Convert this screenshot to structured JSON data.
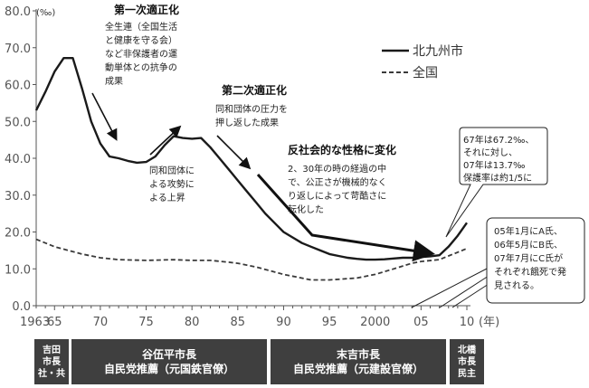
{
  "chart_data": {
    "type": "line",
    "unit_label": "(‰)",
    "x_unit_label": "(年)",
    "xlim": [
      1963,
      2010
    ],
    "ylim": [
      0,
      80
    ],
    "y_ticks": [
      "0.0",
      "10.0",
      "20.0",
      "30.0",
      "40.0",
      "50.0",
      "60.0",
      "70.0",
      "80.0"
    ],
    "x_ticks": [
      {
        "value": 1963,
        "label": "1963"
      },
      {
        "value": 1965,
        "label": "65"
      },
      {
        "value": 1970,
        "label": "70"
      },
      {
        "value": 1975,
        "label": "75"
      },
      {
        "value": 1980,
        "label": "80"
      },
      {
        "value": 1985,
        "label": "85"
      },
      {
        "value": 1990,
        "label": "90"
      },
      {
        "value": 1995,
        "label": "95"
      },
      {
        "value": 2000,
        "label": "2000"
      },
      {
        "value": 2005,
        "label": "05"
      },
      {
        "value": 2010,
        "label": "10"
      }
    ],
    "series": [
      {
        "name": "北九州市",
        "style": "solid",
        "color": "#1a1a1a",
        "points": [
          [
            1963,
            53.0
          ],
          [
            1964,
            58.0
          ],
          [
            1965,
            63.5
          ],
          [
            1966,
            67.2
          ],
          [
            1967,
            67.2
          ],
          [
            1968,
            59.0
          ],
          [
            1969,
            50.0
          ],
          [
            1970,
            44.0
          ],
          [
            1971,
            40.5
          ],
          [
            1972,
            40.0
          ],
          [
            1973,
            39.3
          ],
          [
            1974,
            38.8
          ],
          [
            1975,
            39.0
          ],
          [
            1976,
            40.5
          ],
          [
            1977,
            43.5
          ],
          [
            1978,
            46.0
          ],
          [
            1979,
            45.5
          ],
          [
            1980,
            45.3
          ],
          [
            1981,
            45.5
          ],
          [
            1982,
            43.0
          ],
          [
            1983,
            40.0
          ],
          [
            1984,
            37.0
          ],
          [
            1985,
            34.0
          ],
          [
            1986,
            31.0
          ],
          [
            1987,
            28.0
          ],
          [
            1988,
            25.0
          ],
          [
            1989,
            22.5
          ],
          [
            1990,
            20.0
          ],
          [
            1991,
            18.5
          ],
          [
            1992,
            17.0
          ],
          [
            1993,
            16.0
          ],
          [
            1994,
            15.0
          ],
          [
            1995,
            14.0
          ],
          [
            1996,
            13.5
          ],
          [
            1997,
            13.0
          ],
          [
            1998,
            12.7
          ],
          [
            1999,
            12.5
          ],
          [
            2000,
            12.5
          ],
          [
            2001,
            12.6
          ],
          [
            2002,
            12.8
          ],
          [
            2003,
            13.0
          ],
          [
            2004,
            13.0
          ],
          [
            2005,
            13.2
          ],
          [
            2006,
            13.4
          ],
          [
            2007,
            13.7
          ],
          [
            2008,
            16.0
          ],
          [
            2009,
            19.0
          ],
          [
            2010,
            22.5
          ]
        ]
      },
      {
        "name": "全国",
        "style": "dashed",
        "color": "#3a3a3a",
        "points": [
          [
            1963,
            18.0
          ],
          [
            1965,
            16.0
          ],
          [
            1968,
            14.0
          ],
          [
            1970,
            13.0
          ],
          [
            1972,
            12.5
          ],
          [
            1975,
            12.3
          ],
          [
            1978,
            12.5
          ],
          [
            1980,
            12.3
          ],
          [
            1982,
            12.3
          ],
          [
            1984,
            11.8
          ],
          [
            1985,
            11.5
          ],
          [
            1987,
            10.5
          ],
          [
            1990,
            8.5
          ],
          [
            1993,
            7.0
          ],
          [
            1995,
            7.0
          ],
          [
            1998,
            7.5
          ],
          [
            2000,
            8.5
          ],
          [
            2002,
            10.0
          ],
          [
            2004,
            11.5
          ],
          [
            2005,
            12.0
          ],
          [
            2007,
            12.5
          ],
          [
            2008,
            13.5
          ],
          [
            2009,
            14.5
          ],
          [
            2010,
            15.5
          ]
        ]
      }
    ],
    "annotations": [
      {
        "id": "first",
        "title": "第一次適正化",
        "lines": [
          "全生連（全国生活",
          "と健康を守る会）",
          "など非保護者の運",
          "動単体との抗争の",
          "成果"
        ]
      },
      {
        "id": "second",
        "title": "第二次適正化",
        "lines": [
          "同和団体の圧力を",
          "押し返した成果"
        ]
      },
      {
        "id": "attack",
        "title": "",
        "lines": [
          "同和団体に",
          "よる攻勢に",
          "よる上昇"
        ]
      },
      {
        "id": "third",
        "title": "反社会的な性格に変化",
        "lines": [
          "2、30年の時の経過の中",
          "で、公正さが機械的なく",
          "り返しによって苛酷さに",
          "転化した"
        ]
      }
    ],
    "callouts": [
      {
        "id": "rate",
        "lines": [
          "67年は67.2‰、",
          "それに対し、",
          "07年は13.7‰",
          "保護率は約1/5に"
        ]
      },
      {
        "id": "deaths",
        "lines": [
          "05年1月にA氏、",
          "06年5月にB氏、",
          "07年7月にC氏が",
          "それぞれ餓死で発",
          "見される。"
        ]
      }
    ]
  },
  "mayors": [
    {
      "lines": [
        "吉田",
        "市長",
        "社・共"
      ]
    },
    {
      "lines": [
        "谷伍平市長",
        "自民党推薦（元国鉄官僚）"
      ]
    },
    {
      "lines": [
        "末吉市長",
        "自民党推薦（元建設官僚）"
      ]
    },
    {
      "lines": [
        "北橋",
        "市長",
        "民主"
      ]
    }
  ]
}
